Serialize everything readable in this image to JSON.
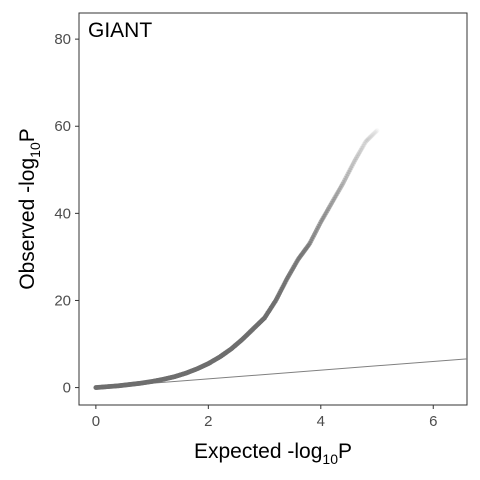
{
  "chart_data": {
    "type": "scatter",
    "panel_label": "GIANT",
    "xlabel": {
      "main": "Expected -log",
      "sub": "10",
      "tail": "P"
    },
    "ylabel": {
      "main": "Observed -log",
      "sub": "10",
      "tail": "P"
    },
    "xlim": [
      -0.3,
      6.6
    ],
    "ylim": [
      -4,
      86
    ],
    "x_ticks": [
      0,
      2,
      4,
      6
    ],
    "y_ticks": [
      0,
      20,
      40,
      60,
      80
    ],
    "grid": false,
    "reference_line": {
      "slope": 1,
      "intercept": 0,
      "color": "#808080"
    },
    "point_color": "#6e6e6e",
    "series": [
      {
        "x": [
          0.0,
          0.2,
          0.4,
          0.6,
          0.8,
          1.0,
          1.2,
          1.4,
          1.6,
          1.8,
          2.0,
          2.2,
          2.4,
          2.6,
          2.8,
          3.0,
          3.1,
          3.2,
          3.4,
          3.6,
          3.8,
          4.0,
          4.2,
          4.4,
          4.6,
          4.8,
          5.0
        ],
        "y": [
          0.0,
          0.2,
          0.4,
          0.7,
          1.0,
          1.4,
          1.9,
          2.5,
          3.3,
          4.3,
          5.5,
          7.0,
          8.8,
          11.0,
          13.5,
          16.0,
          18.0,
          20.0,
          25.0,
          29.5,
          33.0,
          38.0,
          42.5,
          47.0,
          52.0,
          56.5,
          59.0
        ]
      }
    ]
  }
}
